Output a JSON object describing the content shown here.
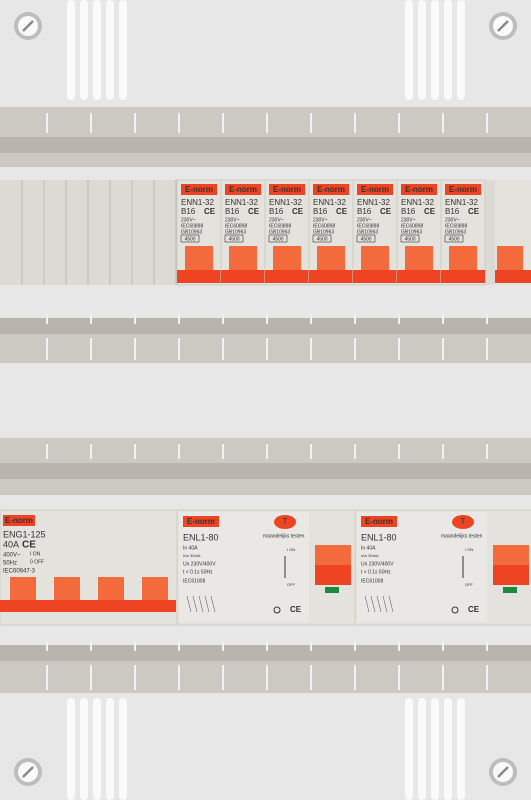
{
  "top_breakers": [
    {
      "brand": "E-norm",
      "model": "ENN1-32",
      "rating": "B16",
      "ce": "CE",
      "voltage": "230V~",
      "std1": "IEC60898",
      "std2": "GB10963",
      "capacity": "4500"
    },
    {
      "brand": "E-norm",
      "model": "ENN1-32",
      "rating": "B16",
      "ce": "CE",
      "voltage": "230V~",
      "std1": "IEC60898",
      "std2": "GB10963",
      "capacity": "4500"
    },
    {
      "brand": "E-norm",
      "model": "ENN1-32",
      "rating": "B16",
      "ce": "CE",
      "voltage": "230V~",
      "std1": "IEC60898",
      "std2": "GB10963",
      "capacity": "4500"
    },
    {
      "brand": "E-norm",
      "model": "ENN1-32",
      "rating": "B16",
      "ce": "CE",
      "voltage": "230V~",
      "std1": "IEC60898",
      "std2": "GB10963",
      "capacity": "4500"
    },
    {
      "brand": "E-norm",
      "model": "ENN1-32",
      "rating": "B16",
      "ce": "CE",
      "voltage": "230V~",
      "std1": "IEC60898",
      "std2": "GB10963",
      "capacity": "4500"
    },
    {
      "brand": "E-norm",
      "model": "ENN1-32",
      "rating": "B16",
      "ce": "CE",
      "voltage": "230V~",
      "std1": "IEC60898",
      "std2": "GB10963",
      "capacity": "4500"
    },
    {
      "brand": "E-norm",
      "model": "ENN1-32",
      "rating": "B16",
      "ce": "CE",
      "voltage": "230V~",
      "std1": "IEC60898",
      "std2": "GB10963",
      "capacity": "4500"
    }
  ],
  "main_switch": {
    "brand": "E-norm",
    "model": "ENG1-125",
    "rating": "40A",
    "ce": "CE",
    "voltage": "400V~",
    "frequency": "50Hz",
    "on": "I ON",
    "off": "0 OFF",
    "standard": "IEC60947-3"
  },
  "rcds": [
    {
      "brand": "E-norm",
      "model": "ENL1-80",
      "current": "In 40A",
      "sensitivity": "IΔn 30mA",
      "voltage": "Un 230V/400V",
      "trip": "t < 0.1s 50Hz",
      "standard": "IEC61008",
      "test_button": "T",
      "test_label": "maandelijks testen",
      "on": "I ON",
      "off": "OFF",
      "ce": "CE"
    },
    {
      "brand": "E-norm",
      "model": "ENL1-80",
      "current": "In 40A",
      "sensitivity": "IΔn 30mA",
      "voltage": "Un 230V/400V",
      "trip": "t < 0.1s 50Hz",
      "standard": "IEC61008",
      "test_button": "T",
      "test_label": "maandelijks testen",
      "on": "I ON",
      "off": "OFF",
      "ce": "CE"
    }
  ]
}
